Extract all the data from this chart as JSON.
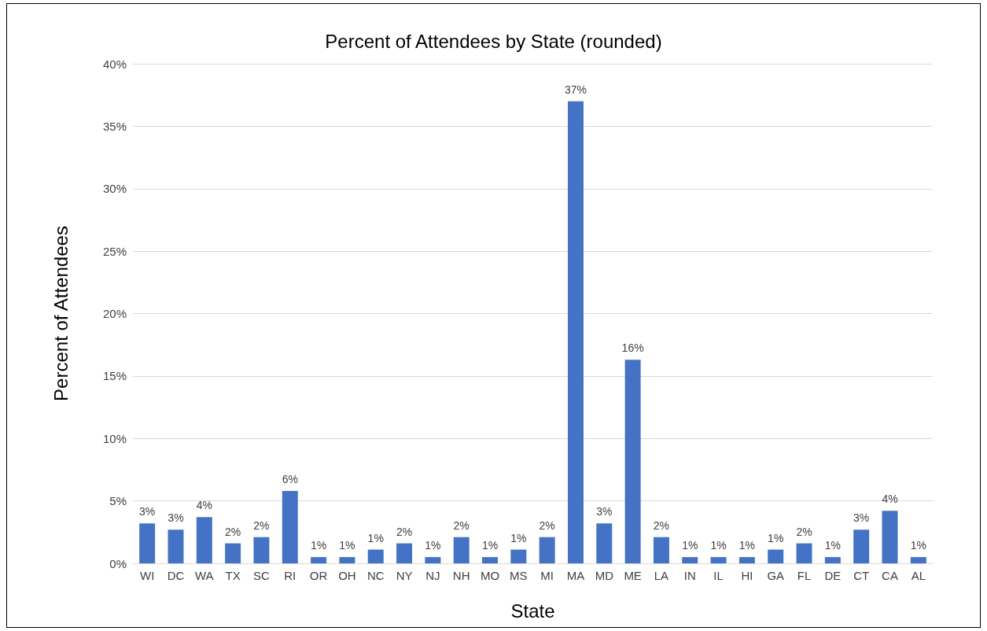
{
  "chart_data": {
    "type": "bar",
    "title": "Percent of Attendees by State (rounded)",
    "xlabel": "State",
    "ylabel": "Percent of Attendees",
    "categories": [
      "WI",
      "DC",
      "WA",
      "TX",
      "SC",
      "RI",
      "OR",
      "OH",
      "NC",
      "NY",
      "NJ",
      "NH",
      "MO",
      "MS",
      "MI",
      "MA",
      "MD",
      "ME",
      "LA",
      "IN",
      "IL",
      "HI",
      "GA",
      "FL",
      "DE",
      "CT",
      "CA",
      "AL"
    ],
    "values": [
      3.2,
      2.7,
      3.7,
      1.6,
      2.1,
      5.8,
      0.5,
      0.5,
      1.1,
      1.6,
      0.5,
      2.1,
      0.5,
      1.1,
      2.1,
      37.0,
      3.2,
      16.3,
      2.1,
      0.5,
      0.5,
      0.5,
      1.1,
      1.6,
      0.5,
      2.7,
      4.2,
      0.5
    ],
    "value_labels": [
      "3%",
      "3%",
      "4%",
      "2%",
      "2%",
      "6%",
      "1%",
      "1%",
      "1%",
      "2%",
      "1%",
      "2%",
      "1%",
      "1%",
      "2%",
      "37%",
      "3%",
      "16%",
      "2%",
      "1%",
      "1%",
      "1%",
      "1%",
      "2%",
      "1%",
      "3%",
      "4%",
      "1%"
    ],
    "color": "#4472c4",
    "ylim": [
      0,
      40
    ],
    "yticks": [
      {
        "value": 0,
        "label": "0%"
      },
      {
        "value": 5,
        "label": "5%"
      },
      {
        "value": 10,
        "label": "10%"
      },
      {
        "value": 15,
        "label": "15%"
      },
      {
        "value": 20,
        "label": "20%"
      },
      {
        "value": 25,
        "label": "25%"
      },
      {
        "value": 30,
        "label": "30%"
      },
      {
        "value": 35,
        "label": "35%"
      },
      {
        "value": 40,
        "label": "40%"
      }
    ],
    "grid": "y"
  }
}
